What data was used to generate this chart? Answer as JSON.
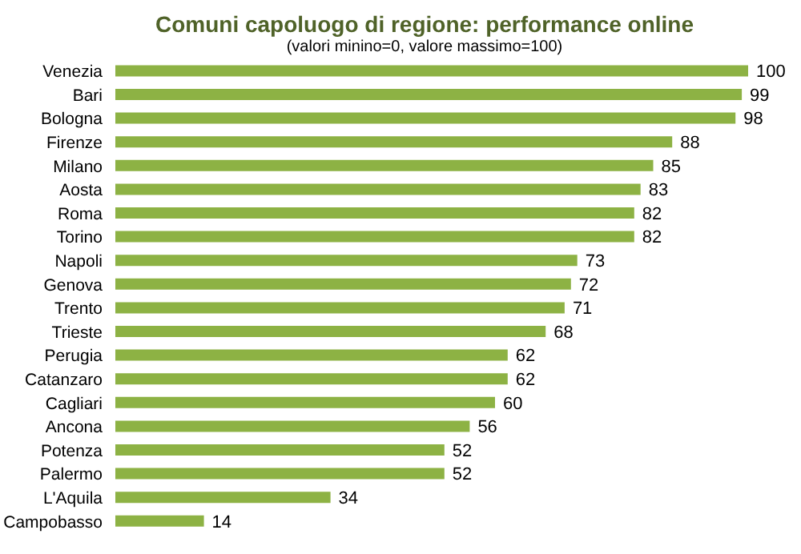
{
  "chart_data": {
    "type": "bar",
    "orientation": "horizontal",
    "title": "Comuni capoluogo di regione: performance online",
    "subtitle": "(valori minino=0, valore massimo=100)",
    "categories": [
      "Venezia",
      "Bari",
      "Bologna",
      "Firenze",
      "Milano",
      "Aosta",
      "Roma",
      "Torino",
      "Napoli",
      "Genova",
      "Trento",
      "Trieste",
      "Perugia",
      "Catanzaro",
      "Cagliari",
      "Ancona",
      "Potenza",
      "Palermo",
      "L'Aquila",
      "Campobasso"
    ],
    "values": [
      100,
      99,
      98,
      88,
      85,
      83,
      82,
      82,
      73,
      72,
      71,
      68,
      62,
      62,
      60,
      56,
      52,
      52,
      34,
      14
    ],
    "color": "#8db244",
    "data_labels": true,
    "tick_labels": "y",
    "grid": false,
    "legend": false
  }
}
